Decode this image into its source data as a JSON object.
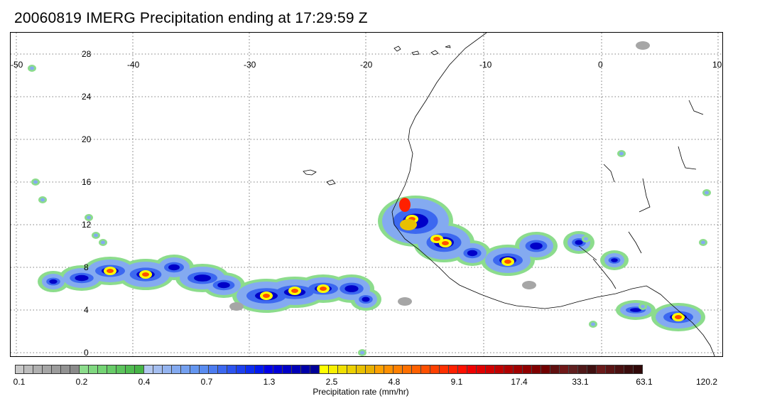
{
  "title": "20060819 IMERG Precipitation ending at 17:29:59 Z",
  "map": {
    "lon_labels": [
      "-50",
      "-40",
      "-30",
      "-20",
      "-10",
      "0",
      "10"
    ],
    "lat_labels": [
      "28",
      "24",
      "20",
      "16",
      "12",
      "8",
      "4",
      "0"
    ],
    "lon_range": [
      -50,
      10
    ],
    "lat_range": [
      -0.5,
      29.5
    ],
    "gridlines": "dotted",
    "coastline": "West Africa"
  },
  "colorbar": {
    "title": "Precipitation rate (mm/hr)",
    "tick_labels": [
      "0.1",
      "0.2",
      "0.4",
      "0.7",
      "1.3",
      "2.5",
      "4.8",
      "9.1",
      "17.4",
      "33.1",
      "63.1",
      "120.2"
    ],
    "colors": [
      "#c8c8c8",
      "#bcbcbc",
      "#b0b0b0",
      "#a6a6a6",
      "#9c9c9c",
      "#929292",
      "#8a8a8a",
      "#8cdc8c",
      "#80d880",
      "#74d474",
      "#68cc68",
      "#5cc45c",
      "#50bc50",
      "#46b446",
      "#b4c8f0",
      "#a4bef0",
      "#94b4f0",
      "#84aaf0",
      "#74a0f0",
      "#6496f0",
      "#5a8cf0",
      "#4c7cf0",
      "#3c68f0",
      "#2c54f0",
      "#1c40f0",
      "#0c2cf0",
      "#0018f0",
      "#0000e8",
      "#0000d8",
      "#0000c8",
      "#0000b8",
      "#0000a8",
      "#000098",
      "#ffff00",
      "#f8f000",
      "#f0e000",
      "#ecd000",
      "#e8c000",
      "#e8b000",
      "#ffa000",
      "#ff9000",
      "#ff8000",
      "#ff7000",
      "#ff6000",
      "#ff5000",
      "#ff4000",
      "#ff3000",
      "#ff2000",
      "#ff1000",
      "#f00000",
      "#e00000",
      "#d00000",
      "#c00000",
      "#b00000",
      "#a00000",
      "#900000",
      "#800000",
      "#700000",
      "#601010",
      "#701818",
      "#602020",
      "#501818",
      "#401010",
      "#6a1a1a",
      "#5a1414",
      "#4a1010",
      "#3a0c0c",
      "#300808"
    ]
  }
}
